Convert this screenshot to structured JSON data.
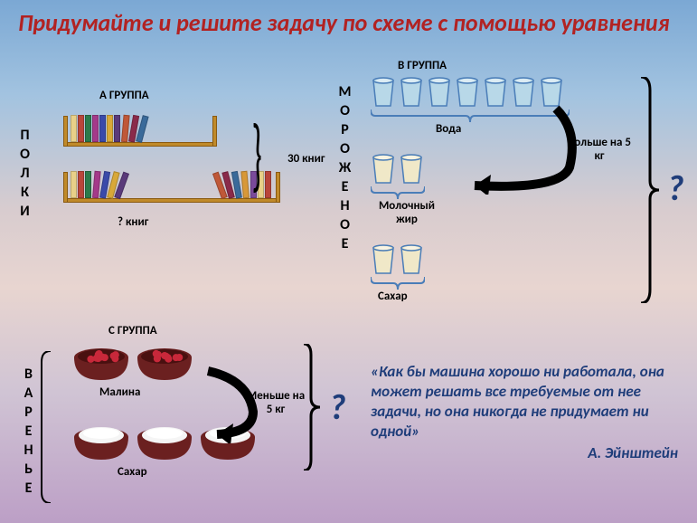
{
  "title": "Придумайте и решите задачу по схеме с помощью уравнения",
  "groupA": {
    "label": "А ГРУППА",
    "vlabel": "ПОЛКИ",
    "total": "30 книг",
    "unknown": "? книг",
    "shelf1_books": 10,
    "shelf2_books": 12,
    "book_colors": [
      "#e8d088",
      "#b8453a",
      "#2a7a4a",
      "#a43a8a",
      "#3a4aaa",
      "#d8a838",
      "#5a3a7a",
      "#c05838",
      "#8a2a4a",
      "#3a6a9a",
      "#d89838",
      "#7a4a9a"
    ]
  },
  "groupB": {
    "label": "В ГРУППА",
    "vlabel": "МОРОЖЕНОЕ",
    "items": [
      {
        "caption": "Вода",
        "count": 7,
        "fill": "#b8d8e8"
      },
      {
        "caption": "Молочный жир",
        "count": 2,
        "fill": "#f0e8c8"
      },
      {
        "caption": "Сахар",
        "count": 2,
        "fill": "#f0e8c8"
      }
    ],
    "arrow_text": "Больше на 5 кг",
    "cup_border": "#4a7db8"
  },
  "groupC": {
    "label": "С ГРУППА",
    "vlabel": "ВАРЕНЬЕ",
    "items": [
      {
        "caption": "Малина",
        "count": 2,
        "type": "berry"
      },
      {
        "caption": "Сахар",
        "count": 3,
        "type": "sugar"
      }
    ],
    "arrow_text": "Меньше на 5 кг",
    "bowl_color": "#6b2020",
    "berry_color": "#c8283a",
    "sugar_color": "#f5f5f5"
  },
  "quote": "«Как бы машина хорошо ни работала, она может решать все требуемые от нее задачи, но она никогда не придумает ни одной»",
  "quote_author": "А. Эйнштейн",
  "qmark": "?",
  "arrow_color": "#000000",
  "brace_color": "#000000"
}
